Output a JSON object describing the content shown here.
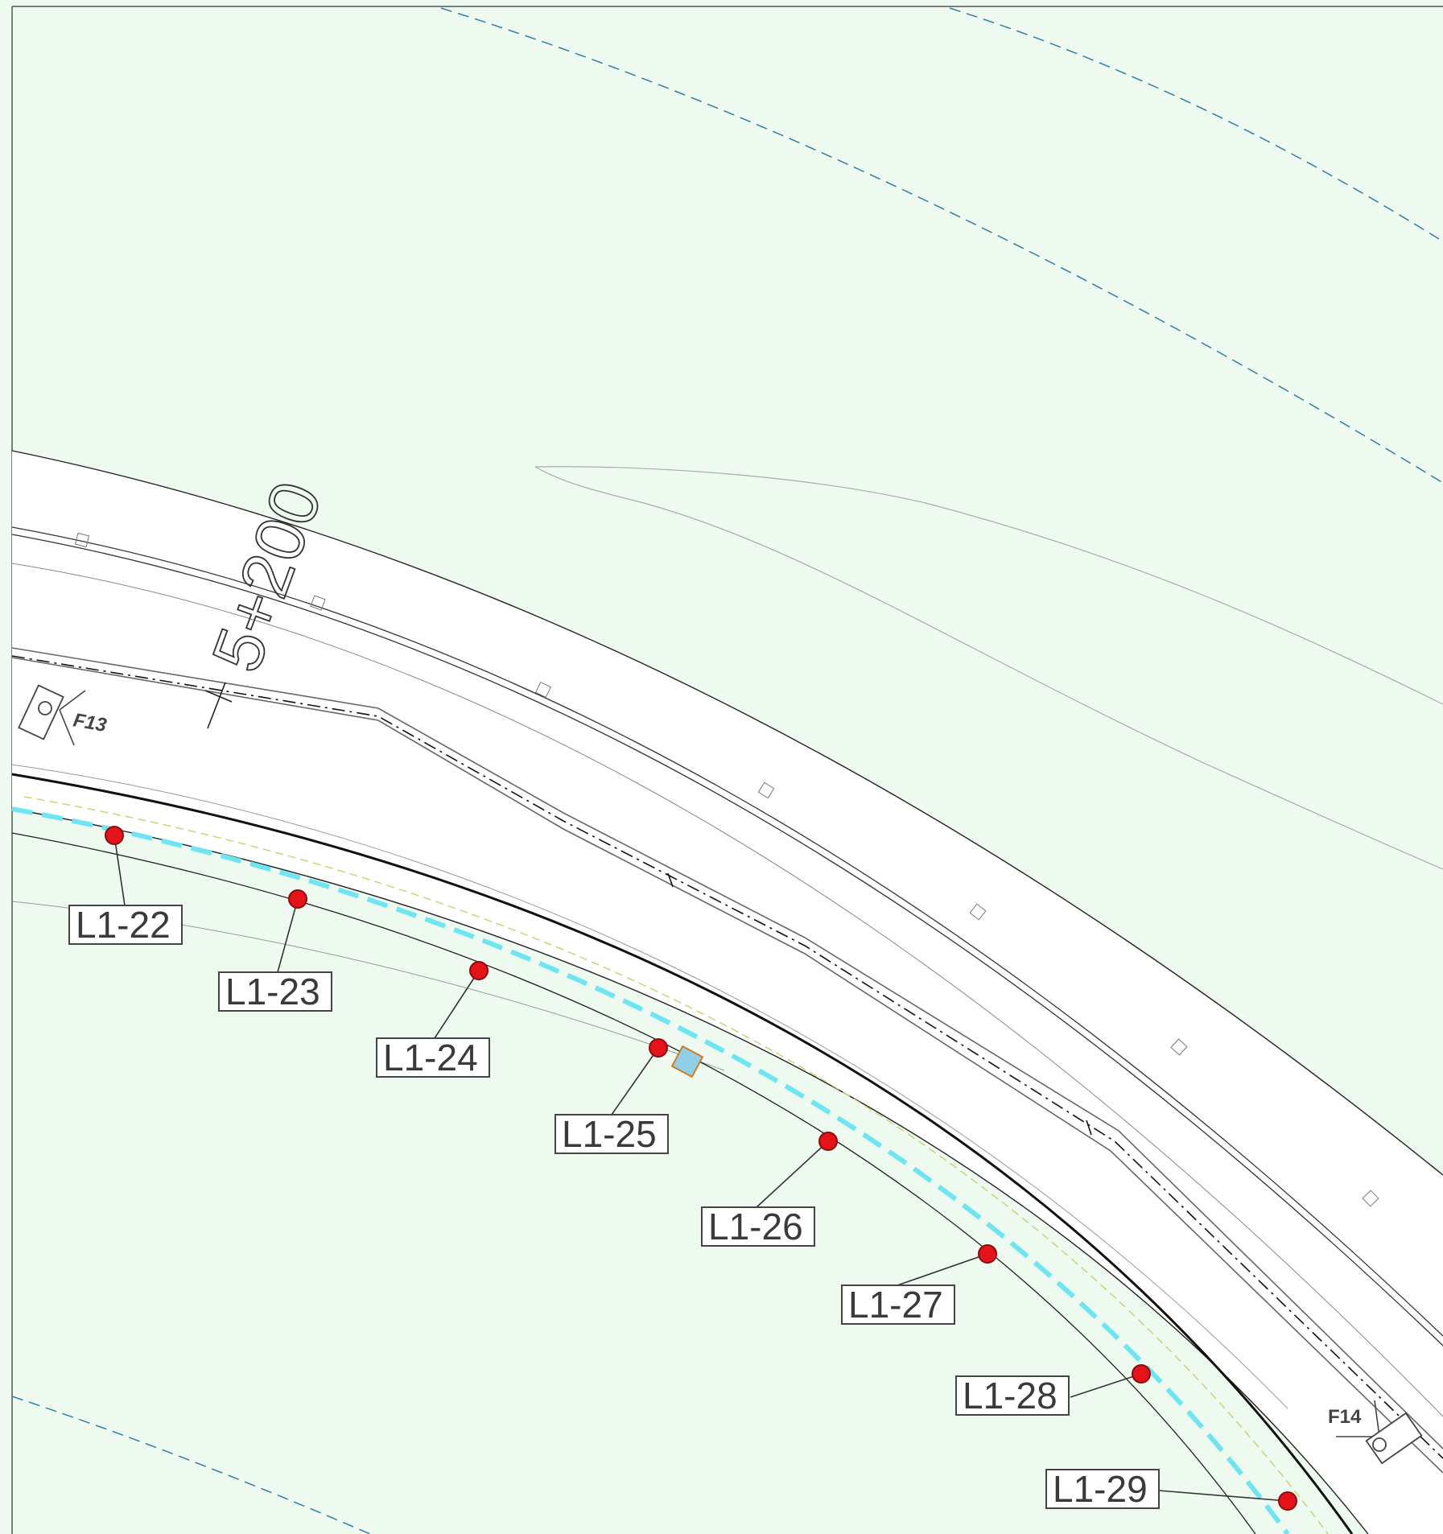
{
  "chainage_label": "5+200",
  "cameras": [
    {
      "id": "F13",
      "label": "F13"
    },
    {
      "id": "F14",
      "label": "F14"
    }
  ],
  "lights": [
    {
      "id": "L1-22",
      "label": "L1-22"
    },
    {
      "id": "L1-23",
      "label": "L1-23"
    },
    {
      "id": "L1-24",
      "label": "L1-24"
    },
    {
      "id": "L1-25",
      "label": "L1-25"
    },
    {
      "id": "L1-26",
      "label": "L1-26"
    },
    {
      "id": "L1-27",
      "label": "L1-27"
    },
    {
      "id": "L1-28",
      "label": "L1-28"
    },
    {
      "id": "L1-29",
      "label": "L1-29"
    }
  ],
  "colors": {
    "terrain": "#eef9f0",
    "road_surface": "#ffffff",
    "boundary_dash": "#2f7fa0",
    "cable_route": "#6ee6f2",
    "light_marker": "#e5121a",
    "offset_dash": "#c8d26a",
    "equipment_box": "#8fd0e8"
  }
}
